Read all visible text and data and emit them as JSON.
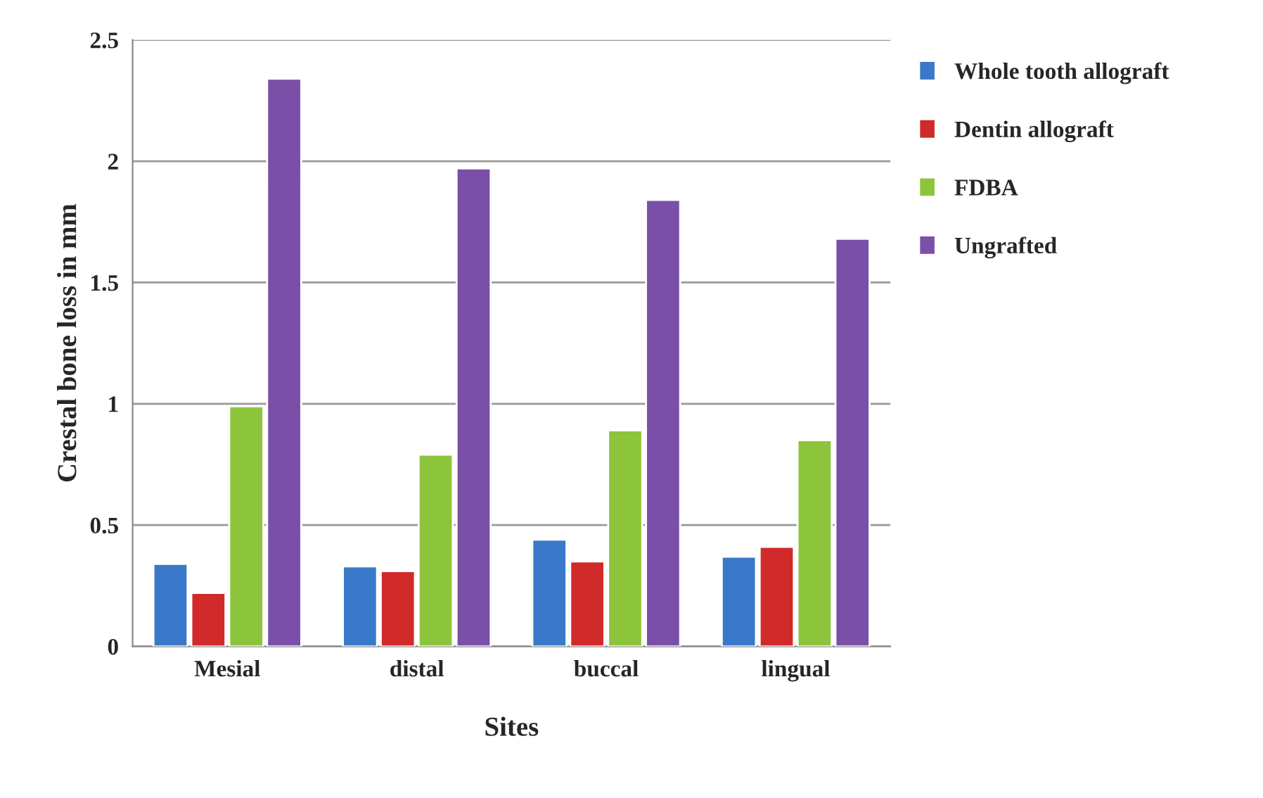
{
  "chart_data": {
    "type": "bar",
    "xlabel": "Sites",
    "ylabel": "Crestal bone loss in mm",
    "categories": [
      "Mesial",
      "distal",
      "buccal",
      "lingual"
    ],
    "series": [
      {
        "name": "Whole tooth allograft",
        "color": "#3a78c9",
        "values": [
          0.34,
          0.33,
          0.44,
          0.37
        ]
      },
      {
        "name": "Dentin allograft",
        "color": "#d02a2a",
        "values": [
          0.22,
          0.31,
          0.35,
          0.41
        ]
      },
      {
        "name": "FDBA",
        "color": "#8cc43c",
        "values": [
          0.99,
          0.79,
          0.89,
          0.85
        ]
      },
      {
        "name": "Ungrafted",
        "color": "#7a4fa8",
        "values": [
          2.34,
          1.97,
          1.84,
          1.68
        ]
      }
    ],
    "ylim": [
      0,
      2.5
    ],
    "yticks": [
      0,
      {
        "value": 0.5,
        "label": "0.5"
      },
      {
        "value": 1,
        "label": "1"
      },
      {
        "value": 1.5,
        "label": "1.5"
      },
      {
        "value": 2,
        "label": "2"
      },
      {
        "value": 2.5,
        "label": "2.5"
      }
    ],
    "grid": "y",
    "legend": "right"
  }
}
